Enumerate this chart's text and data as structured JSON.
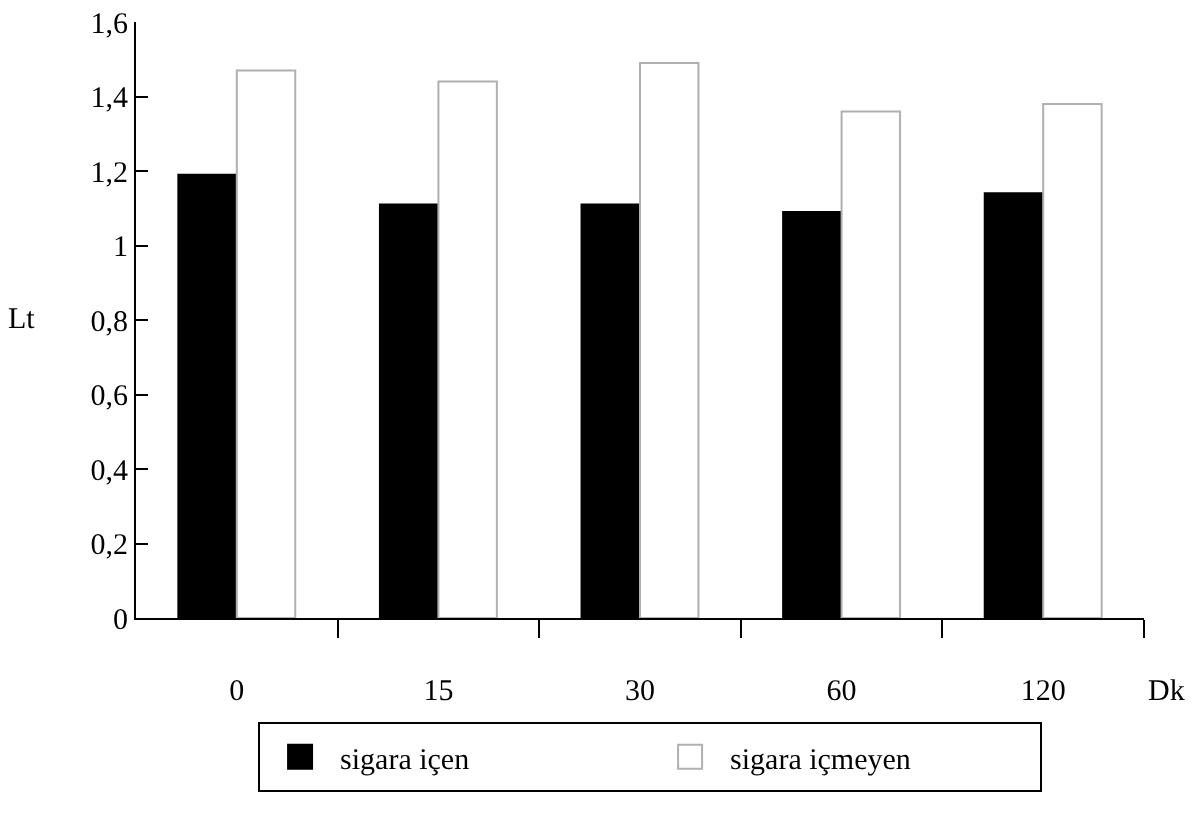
{
  "chart_data": {
    "type": "bar",
    "xlabel": "Dk",
    "ylabel": "Lt",
    "categories": [
      "0",
      "15",
      "30",
      "60",
      "120"
    ],
    "series": [
      {
        "name": "sigara içen",
        "color": "#000000",
        "values": [
          1.19,
          1.11,
          1.11,
          1.09,
          1.14
        ]
      },
      {
        "name": "sigara içmeyen",
        "color": "#ffffff",
        "values": [
          1.47,
          1.44,
          1.49,
          1.36,
          1.38
        ]
      }
    ],
    "ylim": [
      0,
      1.6
    ],
    "yticks": [
      {
        "value": 0,
        "label": "0"
      },
      {
        "value": 0.2,
        "label": "0,2"
      },
      {
        "value": 0.4,
        "label": "0,4"
      },
      {
        "value": 0.6,
        "label": "0,6"
      },
      {
        "value": 0.8,
        "label": "0,8"
      },
      {
        "value": 1,
        "label": "1"
      },
      {
        "value": 1.2,
        "label": "1,2"
      },
      {
        "value": 1.4,
        "label": "1,4"
      },
      {
        "value": 1.6,
        "label": "1,6"
      }
    ],
    "grid": false,
    "legend": "bottom"
  }
}
